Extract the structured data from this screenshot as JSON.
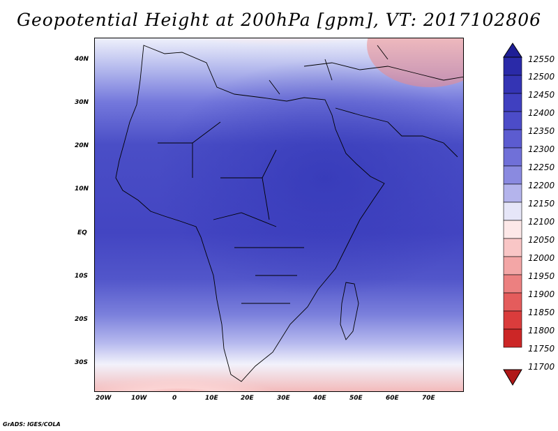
{
  "title": "Geopotential Height at 200hPa [gpm], VT: 2017102806",
  "credit": "GrADS: IGES/COLA",
  "map": {
    "region": "Africa and Middle East",
    "lon_labels": [
      "20W",
      "10W",
      "0",
      "10E",
      "20E",
      "30E",
      "40E",
      "50E",
      "60E",
      "70E"
    ],
    "lat_labels": [
      "40N",
      "30N",
      "20N",
      "10N",
      "EQ",
      "10S",
      "20S",
      "30S"
    ]
  },
  "colorbar": {
    "levels": [
      "12550",
      "12500",
      "12450",
      "12400",
      "12350",
      "12300",
      "12250",
      "12200",
      "12150",
      "12100",
      "12050",
      "12000",
      "11950",
      "11900",
      "11850",
      "11800",
      "11750",
      "11700"
    ],
    "colors": [
      "#1e1e96",
      "#2a2aa8",
      "#3434b4",
      "#4040c0",
      "#4c4cc8",
      "#5c5cd0",
      "#7070d8",
      "#8a8ae0",
      "#b4b4ec",
      "#e6e6f8",
      "#fde8e8",
      "#f9c6c6",
      "#f3a6a6",
      "#ec8080",
      "#e45c5c",
      "#da3c3c",
      "#cc2626",
      "#b01818"
    ]
  }
}
